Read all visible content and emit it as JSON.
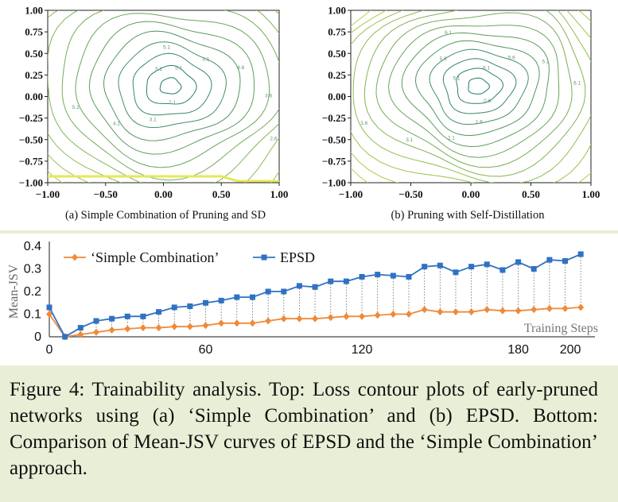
{
  "contours": {
    "ticks_x": [
      "−1.00",
      "−0.50",
      "0.00",
      "0.50",
      "1.00"
    ],
    "ticks_y": [
      "1.00",
      "0.75",
      "0.50",
      "0.25",
      "0.00",
      "−0.25",
      "−0.50",
      "−0.75",
      "−1.00"
    ],
    "a": {
      "caption": "(a) Simple Combination of Pruning and SD",
      "contour_labels": [
        "5.1",
        "3.1",
        "4.6",
        "3.6",
        "2.6",
        "1.6",
        "2.1",
        "3.1",
        "4.1",
        "5.1",
        "5.6",
        "3.6",
        "5.1",
        "5.1"
      ]
    },
    "b": {
      "caption": "(b) Pruning with Self-Distillation",
      "contour_labels": [
        "6.1",
        "5.6",
        "5.1",
        "6.1",
        "2.6",
        "1.1",
        "0.6",
        "1.6",
        "2.1",
        "3.1",
        "3.6",
        "4.6",
        "5.1",
        "5.6",
        "6.1",
        "6.1"
      ]
    }
  },
  "chart_data": {
    "type": "line",
    "ylabel": "Mean-JSV",
    "xlabel": "Training Steps",
    "xlim": [
      0,
      200
    ],
    "ylim": [
      0,
      0.4
    ],
    "x_ticks": [
      "0",
      "60",
      "120",
      "180",
      "200"
    ],
    "y_ticks": [
      "0",
      "0.1",
      "0.2",
      "0.3",
      "0.4"
    ],
    "legend_position": "top-left",
    "x": [
      0,
      6,
      12,
      18,
      24,
      30,
      36,
      42,
      48,
      54,
      60,
      66,
      72,
      78,
      84,
      90,
      96,
      102,
      108,
      114,
      120,
      126,
      132,
      138,
      144,
      150,
      156,
      162,
      168,
      174,
      180,
      186,
      192,
      198,
      204
    ],
    "series": [
      {
        "name": "‘Simple Combination’",
        "color": "#ef8a3a",
        "marker": "diamond",
        "values": [
          0.1,
          0.0,
          0.01,
          0.02,
          0.03,
          0.035,
          0.04,
          0.04,
          0.045,
          0.045,
          0.05,
          0.06,
          0.06,
          0.06,
          0.07,
          0.08,
          0.08,
          0.08,
          0.085,
          0.09,
          0.09,
          0.095,
          0.1,
          0.1,
          0.12,
          0.11,
          0.11,
          0.11,
          0.12,
          0.115,
          0.115,
          0.12,
          0.125,
          0.125,
          0.13
        ]
      },
      {
        "name": "EPSD",
        "color": "#2f72c2",
        "marker": "square",
        "values": [
          0.13,
          0.0,
          0.04,
          0.07,
          0.08,
          0.09,
          0.09,
          0.11,
          0.13,
          0.135,
          0.15,
          0.16,
          0.175,
          0.175,
          0.2,
          0.2,
          0.225,
          0.22,
          0.245,
          0.245,
          0.265,
          0.275,
          0.27,
          0.265,
          0.31,
          0.315,
          0.285,
          0.31,
          0.32,
          0.295,
          0.33,
          0.3,
          0.34,
          0.335,
          0.365
        ]
      }
    ]
  },
  "caption": "Figure 4: Trainability analysis. Top: Loss contour plots of early-pruned networks using (a) ‘Simple Combination’ and (b) EPSD. Bottom: Comparison of Mean-JSV curves of EPSD and the ‘Simple Combination’ approach."
}
